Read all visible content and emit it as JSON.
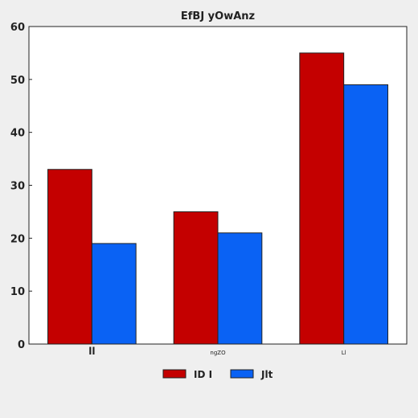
{
  "chart_data": {
    "type": "bar",
    "title": "EfBJ yOwAnz",
    "xlabel": "",
    "ylabel": "",
    "categories": [
      "ll",
      "ngZO",
      "Ll"
    ],
    "series": [
      {
        "name": "ID I",
        "color": "#c40000",
        "values": [
          33,
          25,
          55
        ]
      },
      {
        "name": "Jlt",
        "color": "#0a62f4",
        "values": [
          19,
          21,
          49
        ]
      }
    ],
    "ylim": [
      0,
      60
    ],
    "yticks": [
      "0",
      "10",
      "20",
      "30",
      "40",
      "50",
      "60"
    ],
    "grid": false,
    "legend_position": "bottom-center"
  }
}
